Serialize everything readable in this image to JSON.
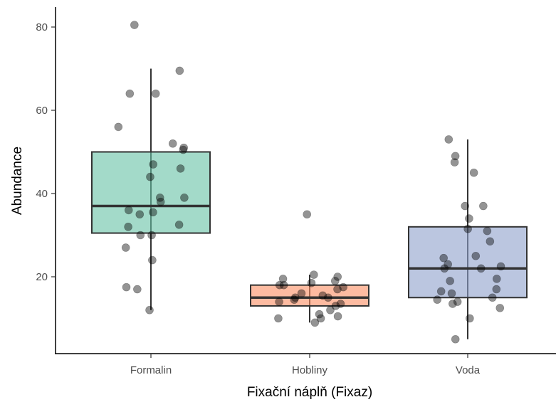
{
  "chart_data": {
    "type": "box",
    "xlabel": "Fixační náplň (Fixaz)",
    "ylabel": "Abundance",
    "ylim": [
      0,
      84
    ],
    "yticks": [
      20,
      40,
      60,
      80
    ],
    "categories": [
      "Formalin",
      "Hobliny",
      "Voda"
    ],
    "groups": [
      {
        "name": "Formalin",
        "color": "#66c2a5",
        "q1": 30.5,
        "median": 37,
        "q3": 50,
        "whisker_low": 12,
        "whisker_high": 70,
        "points": [
          80.5,
          69.5,
          64,
          64,
          56,
          52,
          51,
          50.5,
          47,
          46,
          44,
          39,
          39,
          38,
          36,
          35.5,
          35,
          32.5,
          32,
          30,
          30,
          27,
          24,
          17.5,
          17,
          12
        ]
      },
      {
        "name": "Hobliny",
        "color": "#fc8d62",
        "q1": 13,
        "median": 15,
        "q3": 18,
        "whisker_low": 9,
        "whisker_high": 20.5,
        "points": [
          35,
          20.5,
          20,
          19.5,
          19,
          18.5,
          18,
          18,
          17.5,
          17,
          16,
          15.5,
          15,
          15,
          14.5,
          14,
          13.5,
          13,
          12,
          11,
          10.5,
          10,
          10,
          9
        ]
      },
      {
        "name": "Voda",
        "color": "#8da0cb",
        "q1": 15,
        "median": 22,
        "q3": 32,
        "whisker_low": 5,
        "whisker_high": 53,
        "points": [
          53,
          49,
          47.5,
          45,
          37,
          37,
          34,
          31,
          31.5,
          28.5,
          25,
          24.5,
          23,
          22.5,
          22,
          22,
          19.5,
          19,
          17,
          16.5,
          16,
          15,
          14.5,
          14,
          13.5,
          12.5,
          10,
          5
        ]
      }
    ]
  }
}
